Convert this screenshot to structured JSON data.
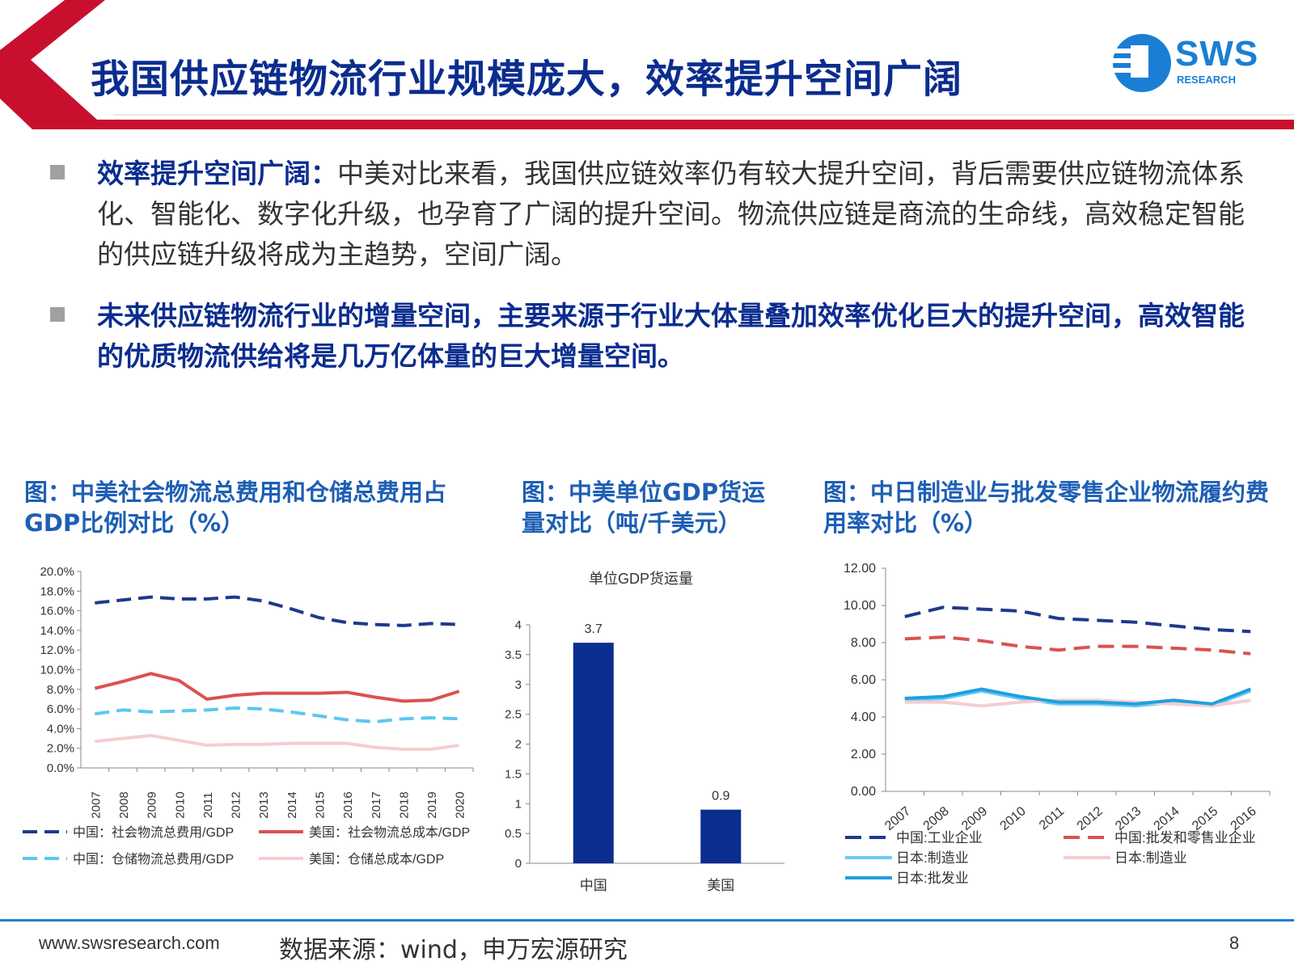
{
  "header": {
    "title": "我国供应链物流行业规模庞大，效率提升空间广阔",
    "logo_text": "SWS",
    "logo_sub": "RESEARCH",
    "accent_red": "#c8102e",
    "accent_blue": "#0b2d8f"
  },
  "bullets": [
    {
      "keyword": "效率提升空间广阔：",
      "text": "中美对比来看，我国供应链效率仍有较大提升空间，背后需要供应链物流体系化、智能化、数字化升级，也孕育了广阔的提升空间。物流供应链是商流的生命线，高效稳定智能的供应链升级将成为主趋势，空间广阔。"
    },
    {
      "text": "未来供应链物流行业的增量空间，主要来源于行业大体量叠加效率优化巨大的提升空间，高效智能的优质物流供给将是几万亿体量的巨大增量空间。"
    }
  ],
  "figures": {
    "fig1_title": "图：中美社会物流总费用和仓储总费用占GDP比例对比（%）",
    "fig2_title": "图：中美单位GDP货运量对比（吨/千美元）",
    "fig3_title": "图：中日制造业与批发零售企业物流履约费用率对比（%）"
  },
  "chart_data": [
    {
      "type": "line",
      "x": [
        "2007",
        "2008",
        "2009",
        "2010",
        "2011",
        "2012",
        "2013",
        "2014",
        "2015",
        "2016",
        "2017",
        "2018",
        "2019",
        "2020"
      ],
      "ylim": [
        0,
        20
      ],
      "yticks": [
        "0.0%",
        "2.0%",
        "4.0%",
        "6.0%",
        "8.0%",
        "10.0%",
        "12.0%",
        "14.0%",
        "16.0%",
        "18.0%",
        "20.0%"
      ],
      "series": [
        {
          "name": "中国：社会物流总费用/GDP",
          "color": "#1f3a8c",
          "dash": true,
          "values": [
            16.8,
            17.1,
            17.4,
            17.2,
            17.2,
            17.4,
            17.0,
            16.2,
            15.3,
            14.8,
            14.6,
            14.5,
            14.7,
            14.6
          ]
        },
        {
          "name": "美国：社会物流总成本/GDP",
          "color": "#d9534f",
          "dash": false,
          "values": [
            8.1,
            8.8,
            9.6,
            8.9,
            7.0,
            7.4,
            7.6,
            7.6,
            7.6,
            7.7,
            7.2,
            6.8,
            6.9,
            7.8
          ]
        },
        {
          "name": "中国：仓储物流总费用/GDP",
          "color": "#5bc8f0",
          "dash": true,
          "values": [
            5.5,
            5.9,
            5.7,
            5.8,
            5.9,
            6.1,
            6.0,
            5.7,
            5.3,
            4.9,
            4.7,
            5.0,
            5.1,
            5.0
          ]
        },
        {
          "name": "美国：仓储总成本/GDP",
          "color": "#f5cdd0",
          "dash": false,
          "values": [
            2.7,
            3.0,
            3.3,
            2.8,
            2.3,
            2.4,
            2.4,
            2.5,
            2.5,
            2.5,
            2.1,
            1.9,
            1.9,
            2.3
          ]
        }
      ]
    },
    {
      "type": "bar",
      "title": "单位GDP货运量",
      "categories": [
        "中国",
        "美国"
      ],
      "values": [
        3.7,
        0.9
      ],
      "data_labels": [
        "3.7",
        "0.9"
      ],
      "ylim": [
        0,
        4
      ],
      "yticks": [
        "0",
        "0.5",
        "1",
        "1.5",
        "2",
        "2.5",
        "3",
        "3.5",
        "4"
      ],
      "color": "#0b2d8f"
    },
    {
      "type": "line",
      "x": [
        "2007",
        "2008",
        "2009",
        "2010",
        "2011",
        "2012",
        "2013",
        "2014",
        "2015",
        "2016"
      ],
      "ylim": [
        0,
        12
      ],
      "yticks": [
        "0.00",
        "2.00",
        "4.00",
        "6.00",
        "8.00",
        "10.00",
        "12.00"
      ],
      "series": [
        {
          "name": "中国:工业企业",
          "color": "#1f3a8c",
          "dash": true,
          "values": [
            9.4,
            9.9,
            9.8,
            9.7,
            9.3,
            9.2,
            9.1,
            8.9,
            8.7,
            8.6
          ]
        },
        {
          "name": "中国:批发和零售业企业",
          "color": "#d9534f",
          "dash": true,
          "values": [
            8.2,
            8.3,
            8.1,
            7.8,
            7.6,
            7.8,
            7.8,
            7.7,
            7.6,
            7.4
          ]
        },
        {
          "name": "日本:制造业",
          "color": "#6ccaf2",
          "dash": false,
          "values": [
            4.9,
            5.0,
            5.4,
            5.0,
            4.7,
            4.7,
            4.6,
            4.8,
            4.6,
            5.4
          ]
        },
        {
          "name": "日本:制造业",
          "color": "#f5cdd0",
          "dash": false,
          "values": [
            4.8,
            4.8,
            4.6,
            4.8,
            4.9,
            4.9,
            4.8,
            4.7,
            4.6,
            4.9
          ]
        },
        {
          "name": "日本:批发业",
          "color": "#1ea0e0",
          "dash": false,
          "values": [
            5.0,
            5.1,
            5.5,
            5.1,
            4.8,
            4.8,
            4.7,
            4.9,
            4.7,
            5.5
          ]
        }
      ]
    }
  ],
  "footer": {
    "url": "www.swsresearch.com",
    "source": "数据来源：wind，申万宏源研究",
    "page": "8"
  }
}
